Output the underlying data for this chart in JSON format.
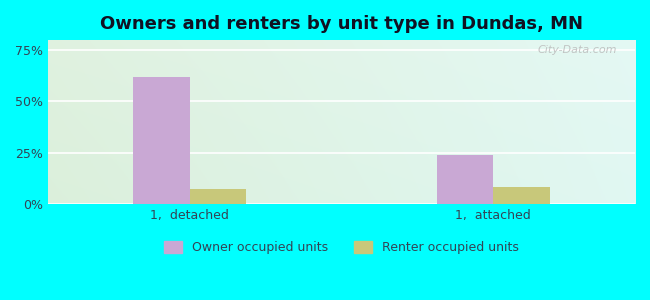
{
  "title": "Owners and renters by unit type in Dundas, MN",
  "groups": [
    "1,  detached",
    "1,  attached"
  ],
  "owner_values": [
    62.0,
    24.0
  ],
  "renter_values": [
    7.0,
    8.0
  ],
  "owner_color": "#C9A8D4",
  "renter_color": "#C8C87A",
  "background_color": "#00FFFF",
  "yticks": [
    0,
    25,
    50,
    75
  ],
  "ylim": [
    0,
    80
  ],
  "bar_width": 0.28,
  "legend_owner": "Owner occupied units",
  "legend_renter": "Renter occupied units",
  "watermark": "City-Data.com"
}
